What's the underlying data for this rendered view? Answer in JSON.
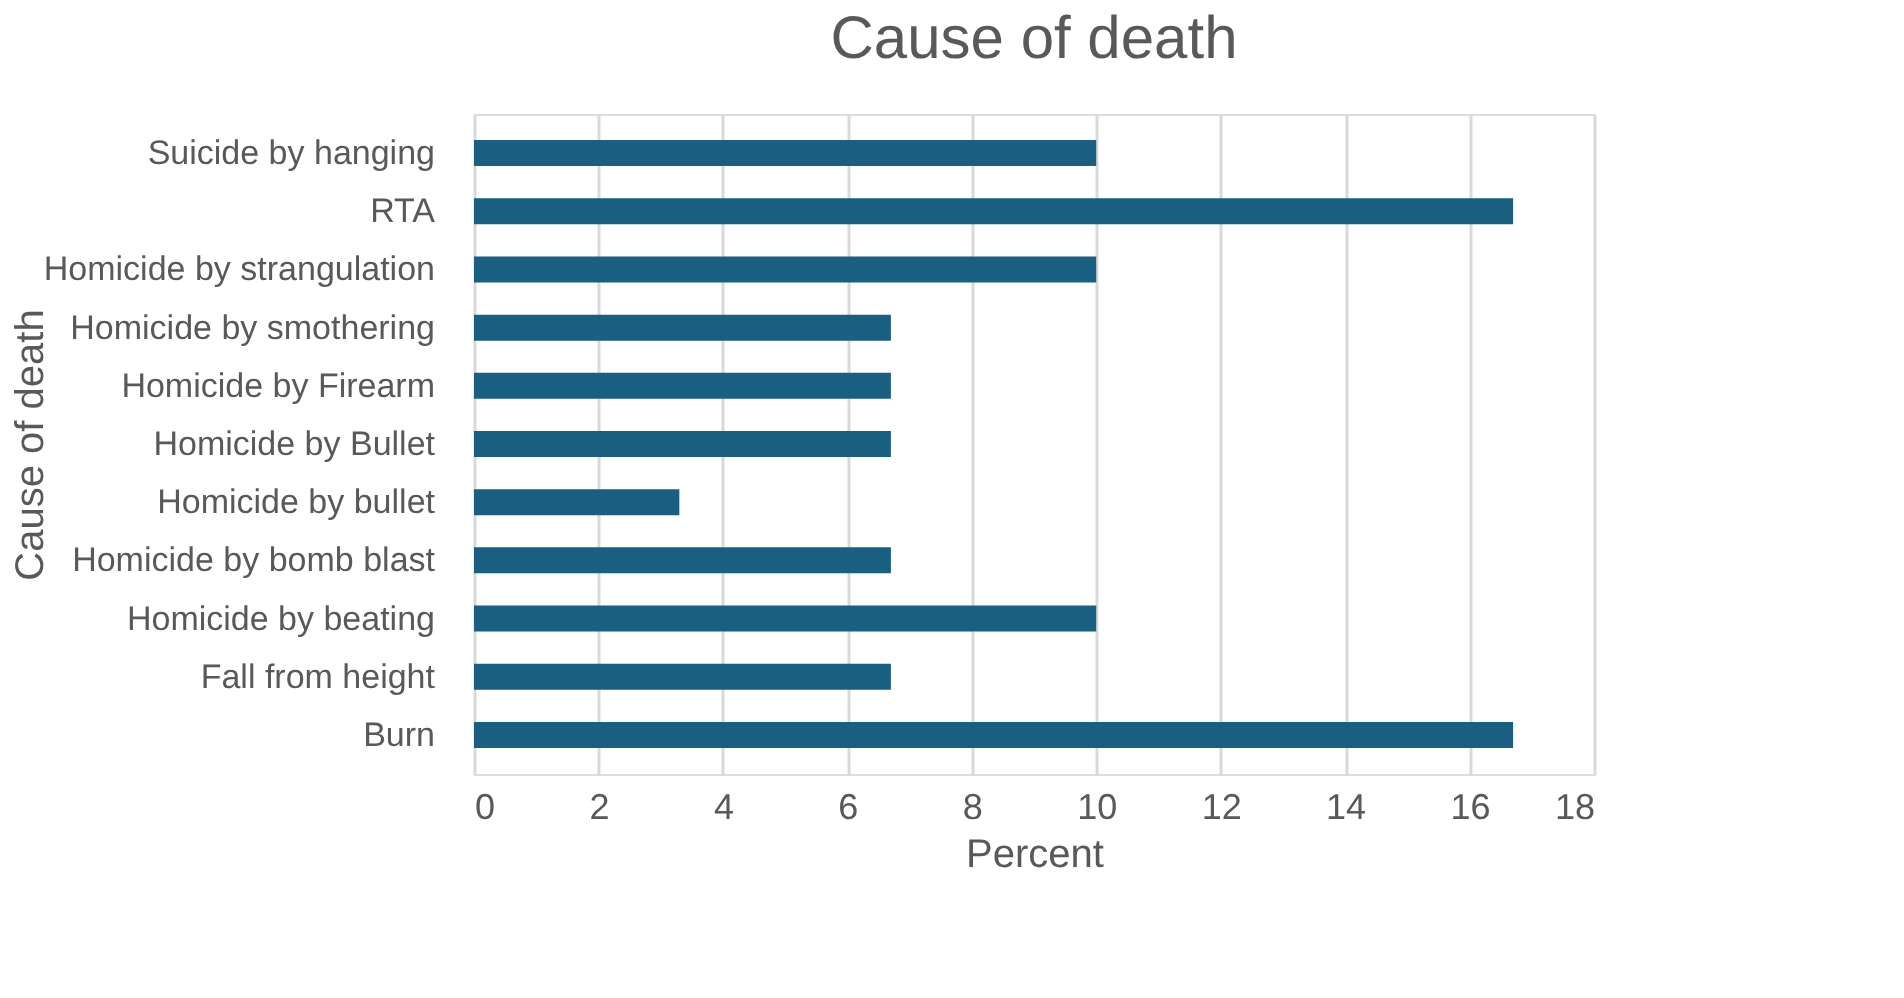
{
  "chart_data": {
    "type": "bar",
    "orientation": "horizontal",
    "title": "Cause of death",
    "xlabel": "Percent",
    "ylabel": "Cause of death",
    "categories": [
      "Suicide by hanging",
      "RTA",
      "Homicide by strangulation",
      "Homicide by smothering",
      "Homicide by Firearm",
      "Homicide by Bullet",
      "Homicide by bullet",
      "Homicide by bomb blast",
      "Homicide by beating",
      "Fall from height",
      "Burn"
    ],
    "values": [
      10,
      16.7,
      10,
      6.7,
      6.7,
      6.7,
      3.3,
      6.7,
      10,
      6.7,
      16.7
    ],
    "color": "#1a5e80",
    "xlim": [
      0,
      18
    ],
    "xticks": [
      0,
      2,
      4,
      6,
      8,
      10,
      12,
      14,
      16,
      18
    ],
    "grid": "x"
  }
}
